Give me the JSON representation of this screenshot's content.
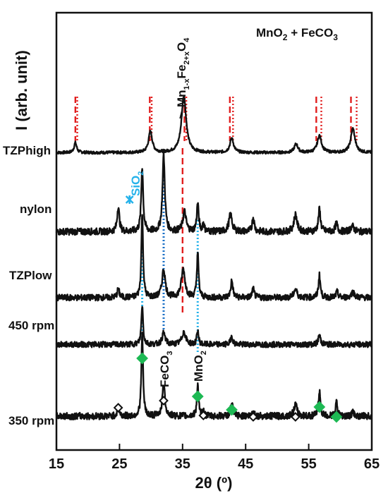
{
  "chart_data": {
    "type": "line",
    "title": "MnO₂ + FeCO₃",
    "xlabel": "2θ (º)",
    "ylabel": "I (arb. unit)",
    "xlim": [
      15,
      65
    ],
    "xticks": [
      "15",
      "25",
      "35",
      "45",
      "55",
      "65"
    ],
    "grid": false,
    "series": [
      {
        "name": "TZPhigh",
        "baseline": 0.96,
        "noise": 0.05,
        "peaks": [
          {
            "x": 18.0,
            "h": 0.35,
            "w": 0.25
          },
          {
            "x": 29.9,
            "h": 0.75,
            "w": 0.35
          },
          {
            "x": 35.2,
            "h": 2.0,
            "w": 0.45
          },
          {
            "x": 42.8,
            "h": 0.5,
            "w": 0.35
          },
          {
            "x": 53.0,
            "h": 0.3,
            "w": 0.35
          },
          {
            "x": 56.7,
            "h": 0.6,
            "w": 0.4
          },
          {
            "x": 62.0,
            "h": 0.85,
            "w": 0.4
          }
        ]
      },
      {
        "name": "nylon",
        "baseline": 3.76,
        "noise": 0.12,
        "peaks": [
          {
            "x": 24.8,
            "h": 0.9,
            "w": 0.2
          },
          {
            "x": 28.6,
            "h": 2.3,
            "w": 0.18
          },
          {
            "x": 32.0,
            "h": 2.7,
            "w": 0.22
          },
          {
            "x": 35.3,
            "h": 0.7,
            "w": 0.3
          },
          {
            "x": 37.4,
            "h": 1.0,
            "w": 0.18
          },
          {
            "x": 38.3,
            "h": 0.3,
            "w": 0.15
          },
          {
            "x": 42.6,
            "h": 0.6,
            "w": 0.3
          },
          {
            "x": 46.2,
            "h": 0.5,
            "w": 0.2
          },
          {
            "x": 52.9,
            "h": 0.6,
            "w": 0.3
          },
          {
            "x": 56.7,
            "h": 0.8,
            "w": 0.2
          },
          {
            "x": 59.4,
            "h": 0.3,
            "w": 0.2
          },
          {
            "x": 61.9,
            "h": 0.2,
            "w": 0.3
          }
        ]
      },
      {
        "name": "TZPlow",
        "baseline": 6.1,
        "noise": 0.11,
        "peaks": [
          {
            "x": 24.8,
            "h": 0.3,
            "w": 0.2
          },
          {
            "x": 28.6,
            "h": 3.0,
            "w": 0.16
          },
          {
            "x": 32.0,
            "h": 1.0,
            "w": 0.3
          },
          {
            "x": 35.1,
            "h": 1.0,
            "w": 0.35
          },
          {
            "x": 37.4,
            "h": 1.6,
            "w": 0.16
          },
          {
            "x": 42.8,
            "h": 0.6,
            "w": 0.2
          },
          {
            "x": 46.2,
            "h": 0.3,
            "w": 0.2
          },
          {
            "x": 52.9,
            "h": 0.3,
            "w": 0.3
          },
          {
            "x": 56.7,
            "h": 0.8,
            "w": 0.18
          },
          {
            "x": 59.5,
            "h": 0.2,
            "w": 0.2
          },
          {
            "x": 62.0,
            "h": 0.2,
            "w": 0.3
          }
        ]
      },
      {
        "name": "450 rpm",
        "baseline": 7.76,
        "noise": 0.1,
        "peaks": [
          {
            "x": 28.6,
            "h": 1.4,
            "w": 0.16
          },
          {
            "x": 32.0,
            "h": 0.4,
            "w": 0.3
          },
          {
            "x": 35.2,
            "h": 0.45,
            "w": 0.35
          },
          {
            "x": 37.4,
            "h": 0.5,
            "w": 0.16
          },
          {
            "x": 42.8,
            "h": 0.3,
            "w": 0.2
          },
          {
            "x": 56.7,
            "h": 0.35,
            "w": 0.2
          }
        ]
      },
      {
        "name": "350 rpm",
        "baseline": 10.3,
        "noise": 0.12,
        "peaks": [
          {
            "x": 24.8,
            "h": 0.3,
            "w": 0.2
          },
          {
            "x": 28.6,
            "h": 2.9,
            "w": 0.16
          },
          {
            "x": 32.0,
            "h": 1.1,
            "w": 0.25
          },
          {
            "x": 37.4,
            "h": 1.1,
            "w": 0.16
          },
          {
            "x": 38.3,
            "h": 0.2,
            "w": 0.15
          },
          {
            "x": 42.8,
            "h": 0.5,
            "w": 0.2
          },
          {
            "x": 46.2,
            "h": 0.2,
            "w": 0.2
          },
          {
            "x": 52.9,
            "h": 0.4,
            "w": 0.3
          },
          {
            "x": 56.7,
            "h": 0.9,
            "w": 0.18
          },
          {
            "x": 59.4,
            "h": 0.5,
            "w": 0.16
          },
          {
            "x": 62.0,
            "h": 0.15,
            "w": 0.2
          }
        ]
      }
    ],
    "reference_lines": {
      "spinel_dashed_red": {
        "x": [
          18.0,
          29.8,
          35.3,
          42.5,
          56.2,
          61.7
        ],
        "color": "#e11d1d"
      },
      "spinel_dotted_red": {
        "x": [
          18.3,
          30.1,
          35.6,
          43.0,
          57.0,
          62.6
        ],
        "color": "#e11d1d"
      },
      "center_dashed_red": {
        "x": 35.0,
        "color": "#e11d1d"
      },
      "light_blue_dotted": {
        "x": [
          28.6,
          37.4
        ],
        "color": "#25b2ea"
      },
      "dark_blue_dotted": {
        "x": 32.0,
        "color": "#1a70c6"
      }
    },
    "markers": {
      "mno2_diamonds": {
        "x": [
          28.6,
          37.4,
          42.8,
          56.7,
          59.4
        ],
        "color": "#1db954"
      },
      "feco3_diamonds": {
        "x": [
          24.8,
          32.0,
          38.3,
          46.2,
          52.9
        ]
      },
      "sio2_cross": {
        "x": 26.6,
        "color": "#25b2ea"
      }
    },
    "annotations": {
      "spinel": "Mn1-xFe2+xO4",
      "sio2": "SiO2",
      "feco3": "FeCO3",
      "mno2": "MnO2"
    }
  }
}
